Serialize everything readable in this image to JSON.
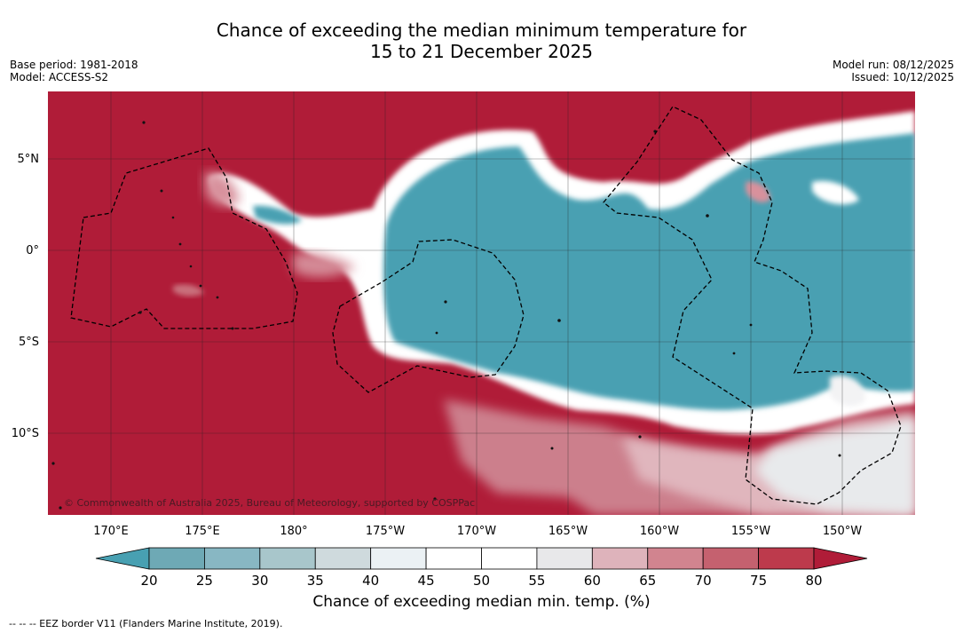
{
  "title_line1": "Chance of exceeding the median minimum temperature for",
  "title_line2": "15 to 21 December 2025",
  "base_period": "Base period: 1981-2018",
  "model": "Model: ACCESS-S2",
  "model_run": "Model run: 08/12/2025",
  "issued": "Issued: 10/12/2025",
  "copyright": "© Commonwealth of Australia 2025, Bureau of Meteorology, supported by COSPPac",
  "lat_labels": [
    "5°N",
    "0°",
    "5°S",
    "10°S"
  ],
  "lon_labels": [
    "170°E",
    "175°E",
    "180°",
    "175°W",
    "170°W",
    "165°W",
    "160°W",
    "155°W",
    "150°W"
  ],
  "colorbar": {
    "ticks": [
      "20",
      "25",
      "30",
      "35",
      "40",
      "45",
      "50",
      "55",
      "60",
      "65",
      "70",
      "75",
      "80"
    ],
    "colors": [
      "#48a0b2",
      "#6ea9b5",
      "#88b7c3",
      "#a8c6cb",
      "#cfdadd",
      "#ebf1f4",
      "#ffffff",
      "#ffffff",
      "#e8e8ea",
      "#deb3bb",
      "#d1848f",
      "#c5616f",
      "#bd3a4c",
      "#b01c38"
    ],
    "label": "Chance of exceeding median min. temp. (%)"
  },
  "legend_note": "--  --  -- EEZ border V11 (Flanders Marine Institute, 2019)."
}
